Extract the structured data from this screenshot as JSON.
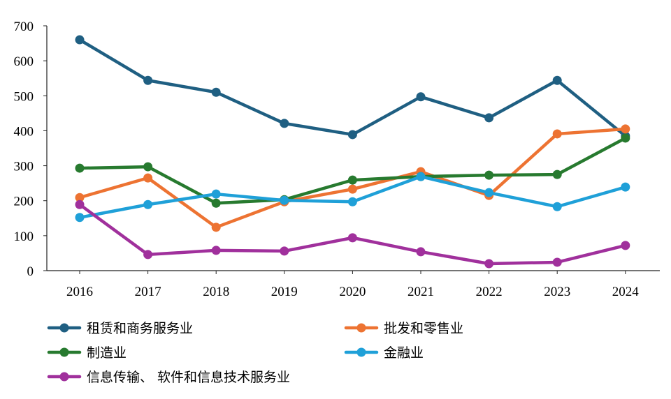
{
  "chart_data": {
    "type": "line",
    "title": "",
    "xlabel": "",
    "ylabel": "",
    "x": [
      "2016",
      "2017",
      "2018",
      "2019",
      "2020",
      "2021",
      "2022",
      "2023",
      "2024"
    ],
    "ylim": [
      0,
      700
    ],
    "yticks": [
      0,
      100,
      200,
      300,
      400,
      500,
      600,
      700
    ],
    "grid": false,
    "legend_position": "bottom",
    "series": [
      {
        "name": "租赁和商务服务业",
        "color": "#1f5f82",
        "values": [
          660,
          544,
          510,
          421,
          389,
          497,
          437,
          544,
          385
        ]
      },
      {
        "name": "批发和零售业",
        "color": "#ed7332",
        "values": [
          209,
          265,
          124,
          197,
          233,
          283,
          215,
          391,
          405
        ]
      },
      {
        "name": "制造业",
        "color": "#277a2f",
        "values": [
          293,
          297,
          193,
          203,
          259,
          269,
          273,
          275,
          379
        ]
      },
      {
        "name": "金融业",
        "color": "#1fa0d8",
        "values": [
          152,
          189,
          219,
          201,
          197,
          269,
          223,
          183,
          239
        ]
      },
      {
        "name": "信息传输、 软件和信息技术服务业",
        "color": "#a0309c",
        "values": [
          189,
          46,
          58,
          56,
          94,
          54,
          20,
          24,
          72
        ]
      }
    ]
  }
}
